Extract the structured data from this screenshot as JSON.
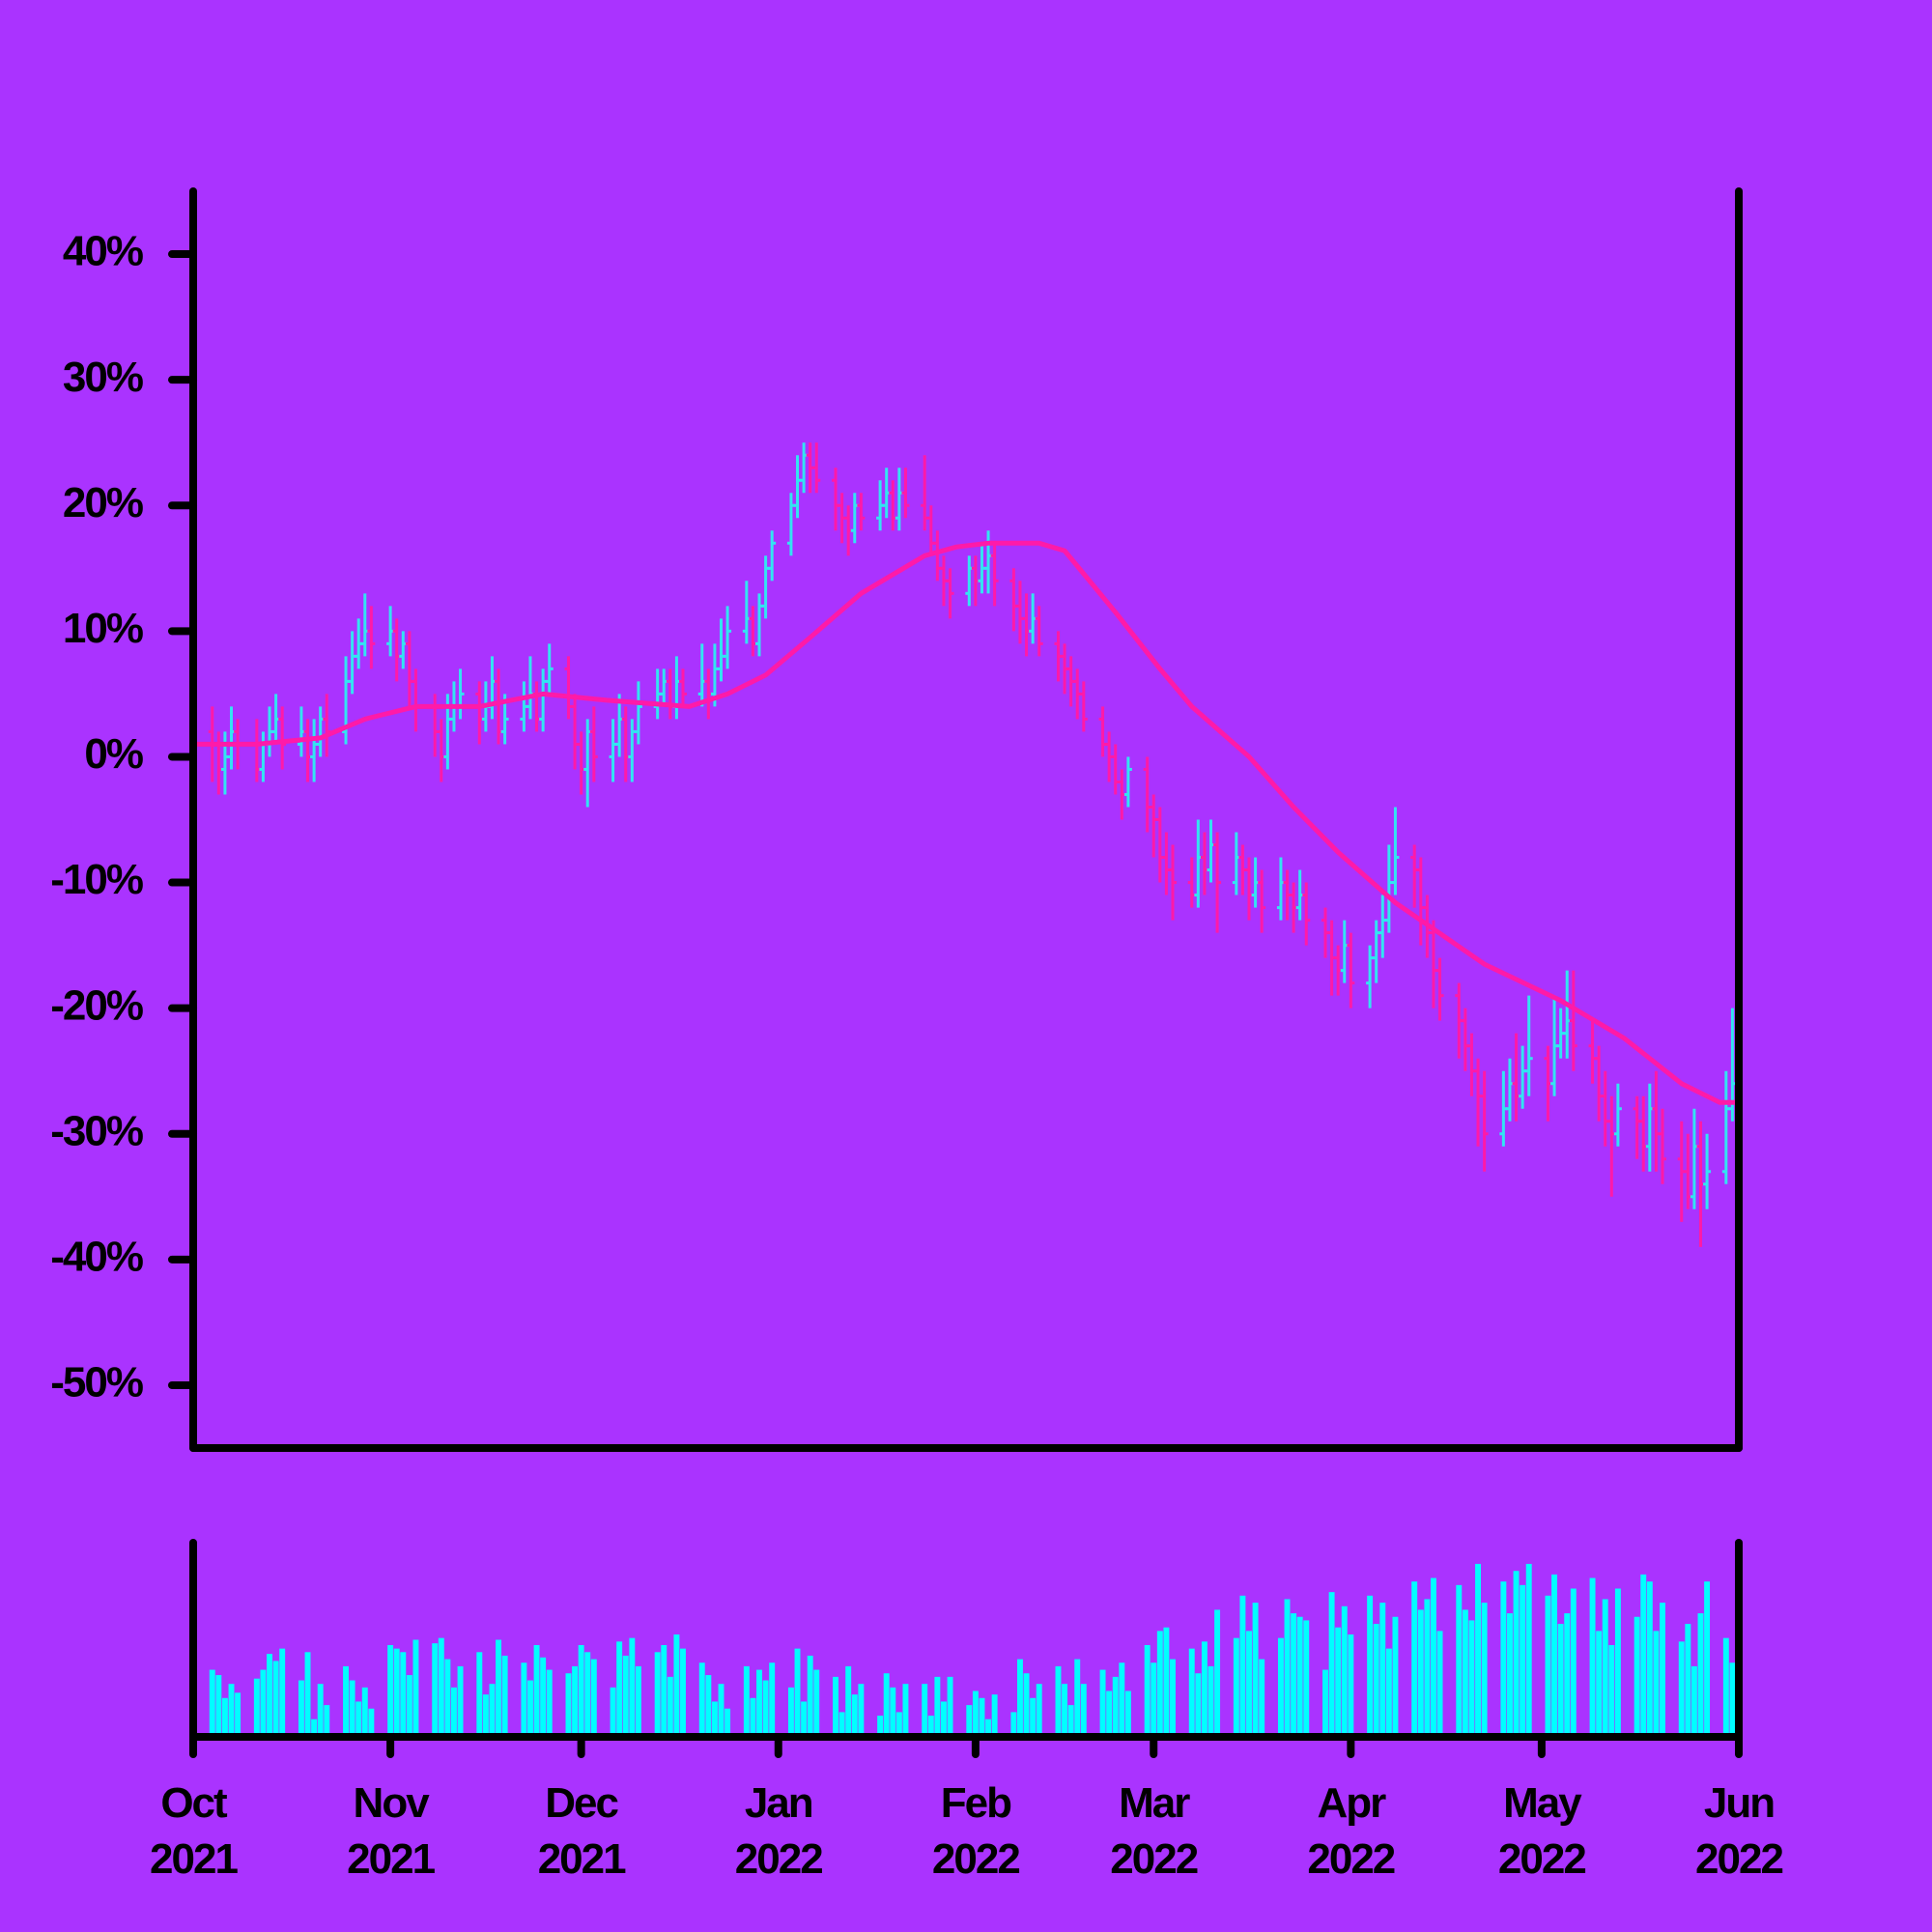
{
  "chart_data": {
    "type": "ohlc",
    "background": "#aa33ff",
    "up_color": "#33e4f2",
    "down_color": "#ff1aa8",
    "volume_color": "#00ffff",
    "xlim": [
      0,
      243
    ],
    "xticks": [
      {
        "value": 0,
        "label": "Oct\n2021"
      },
      {
        "value": 31,
        "label": "Nov\n2021"
      },
      {
        "value": 61,
        "label": "Dec\n2021"
      },
      {
        "value": 92,
        "label": "Jan\n2022"
      },
      {
        "value": 123,
        "label": "Feb\n2022"
      },
      {
        "value": 151,
        "label": "Mar\n2022"
      },
      {
        "value": 182,
        "label": "Apr\n2022"
      },
      {
        "value": 212,
        "label": "May\n2022"
      },
      {
        "value": 243,
        "label": "Jun\n2022"
      }
    ],
    "ylim": [
      -55,
      45
    ],
    "yticks": [
      {
        "value": 40,
        "label": "40%"
      },
      {
        "value": 30,
        "label": "30%"
      },
      {
        "value": 20,
        "label": "20%"
      },
      {
        "value": 10,
        "label": "10%"
      },
      {
        "value": 0,
        "label": "0%"
      },
      {
        "value": -10,
        "label": "-10%"
      },
      {
        "value": -20,
        "label": "-20%"
      },
      {
        "value": -30,
        "label": "-30%"
      },
      {
        "value": -40,
        "label": "-40%"
      },
      {
        "value": -50,
        "label": "-50%"
      }
    ],
    "volume_ylim": [
      0,
      110
    ],
    "x": [
      0,
      3,
      4,
      5,
      6,
      7,
      10,
      11,
      12,
      13,
      14,
      17,
      18,
      19,
      20,
      21,
      24,
      25,
      26,
      27,
      28,
      31,
      32,
      33,
      34,
      35,
      38,
      39,
      40,
      41,
      42,
      45,
      46,
      47,
      48,
      49,
      52,
      53,
      54,
      55,
      56,
      59,
      60,
      61,
      62,
      63,
      66,
      67,
      68,
      69,
      70,
      73,
      74,
      75,
      76,
      77,
      80,
      81,
      82,
      83,
      84,
      87,
      88,
      89,
      90,
      91,
      94,
      95,
      96,
      97,
      98,
      101,
      102,
      103,
      104,
      105,
      108,
      109,
      110,
      111,
      112,
      115,
      116,
      117,
      118,
      119,
      122,
      123,
      124,
      125,
      126,
      129,
      130,
      131,
      132,
      133,
      136,
      137,
      138,
      139,
      140,
      143,
      144,
      145,
      146,
      147,
      150,
      151,
      152,
      153,
      154,
      157,
      158,
      159,
      160,
      161,
      164,
      165,
      166,
      167,
      168,
      171,
      172,
      173,
      174,
      175,
      178,
      179,
      180,
      181,
      182,
      185,
      186,
      187,
      188,
      189,
      192,
      193,
      194,
      195,
      196,
      199,
      200,
      201,
      202,
      203,
      206,
      207,
      208,
      209,
      210,
      213,
      214,
      215,
      216,
      217,
      220,
      221,
      222,
      223,
      224,
      227,
      228,
      229,
      230,
      231,
      234,
      235,
      236,
      237,
      238,
      241,
      242
    ],
    "open": [
      0,
      2,
      1,
      -1,
      0,
      2,
      1,
      -1,
      1,
      2,
      3,
      1,
      2,
      0,
      1,
      3,
      2,
      6,
      8,
      9,
      10,
      9,
      10,
      8,
      9,
      6,
      4,
      2,
      0,
      3,
      4,
      5,
      3,
      4,
      6,
      2,
      3,
      4,
      5,
      3,
      6,
      7,
      4,
      1,
      -1,
      2,
      0,
      1,
      3,
      0,
      2,
      4,
      5,
      6,
      4,
      6,
      5,
      6,
      5,
      7,
      8,
      10,
      11,
      9,
      12,
      15,
      17,
      20,
      22,
      24,
      23,
      22,
      20,
      19,
      18,
      20,
      19,
      20,
      21,
      19,
      21,
      20,
      19,
      17,
      15,
      14,
      13,
      15,
      14,
      15,
      16,
      14,
      12,
      11,
      10,
      11,
      9,
      8,
      7,
      6,
      5,
      3,
      1,
      0,
      -2,
      -3,
      -1,
      -4,
      -5,
      -8,
      -9,
      -10,
      -11,
      -8,
      -9,
      -7,
      -10,
      -8,
      -9,
      -11,
      -10,
      -12,
      -10,
      -11,
      -12,
      -11,
      -13,
      -14,
      -16,
      -17,
      -15,
      -18,
      -16,
      -14,
      -13,
      -10,
      -8,
      -9,
      -12,
      -14,
      -17,
      -19,
      -21,
      -23,
      -25,
      -27,
      -30,
      -28,
      -26,
      -27,
      -25,
      -24,
      -26,
      -23,
      -22,
      -21,
      -23,
      -24,
      -27,
      -29,
      -30,
      -28,
      -29,
      -31,
      -28,
      -30,
      -32,
      -33,
      -35,
      -31,
      -34,
      -33,
      -28
    ],
    "high": [
      5,
      4,
      2,
      2,
      4,
      3,
      3,
      2,
      4,
      5,
      4,
      4,
      3,
      3,
      4,
      5,
      8,
      10,
      11,
      13,
      12,
      12,
      11,
      10,
      10,
      7,
      5,
      3,
      5,
      6,
      7,
      6,
      6,
      8,
      7,
      5,
      6,
      8,
      6,
      7,
      9,
      8,
      5,
      2,
      3,
      4,
      3,
      5,
      4,
      3,
      6,
      7,
      7,
      7,
      8,
      7,
      9,
      7,
      9,
      11,
      12,
      14,
      12,
      13,
      16,
      18,
      21,
      24,
      25,
      25,
      25,
      23,
      21,
      20,
      21,
      21,
      22,
      23,
      22,
      23,
      23,
      24,
      20,
      18,
      16,
      15,
      16,
      16,
      17,
      18,
      17,
      15,
      14,
      13,
      13,
      12,
      10,
      9,
      8,
      7,
      6,
      4,
      2,
      1,
      -1,
      0,
      0,
      -3,
      -4,
      -6,
      -7,
      -8,
      -5,
      -6,
      -5,
      -6,
      -6,
      -7,
      -8,
      -8,
      -9,
      -8,
      -9,
      -10,
      -9,
      -10,
      -12,
      -13,
      -15,
      -13,
      -14,
      -15,
      -13,
      -11,
      -7,
      -4,
      -7,
      -8,
      -11,
      -13,
      -16,
      -18,
      -20,
      -22,
      -24,
      -25,
      -25,
      -24,
      -22,
      -23,
      -19,
      -23,
      -19,
      -20,
      -17,
      -17,
      -21,
      -23,
      -25,
      -27,
      -26,
      -27,
      -27,
      -26,
      -25,
      -28,
      -29,
      -30,
      -28,
      -29,
      -30,
      -25,
      -20
    ],
    "low": [
      -3,
      -2,
      -3,
      -3,
      -1,
      -1,
      -2,
      -2,
      0,
      1,
      -1,
      0,
      -2,
      -2,
      0,
      0,
      1,
      5,
      7,
      8,
      7,
      8,
      6,
      7,
      4,
      2,
      0,
      -2,
      -1,
      2,
      3,
      1,
      2,
      3,
      1,
      1,
      2,
      3,
      2,
      2,
      5,
      3,
      -1,
      -3,
      -4,
      -2,
      -2,
      0,
      -2,
      -2,
      1,
      3,
      4,
      3,
      3,
      4,
      4,
      3,
      4,
      6,
      7,
      9,
      8,
      8,
      11,
      14,
      16,
      19,
      21,
      21,
      21,
      18,
      17,
      16,
      17,
      18,
      18,
      19,
      18,
      18,
      19,
      18,
      16,
      14,
      12,
      11,
      12,
      12,
      13,
      13,
      12,
      10,
      9,
      8,
      9,
      8,
      6,
      5,
      4,
      3,
      2,
      0,
      -2,
      -3,
      -5,
      -4,
      -6,
      -8,
      -10,
      -11,
      -13,
      -12,
      -12,
      -11,
      -10,
      -14,
      -11,
      -11,
      -13,
      -12,
      -14,
      -13,
      -13,
      -14,
      -13,
      -15,
      -16,
      -19,
      -19,
      -18,
      -20,
      -20,
      -18,
      -16,
      -14,
      -11,
      -12,
      -15,
      -16,
      -20,
      -21,
      -24,
      -25,
      -27,
      -31,
      -33,
      -31,
      -29,
      -29,
      -28,
      -27,
      -29,
      -27,
      -24,
      -24,
      -25,
      -26,
      -29,
      -31,
      -35,
      -31,
      -32,
      -33,
      -33,
      -33,
      -34,
      -37,
      -36,
      -36,
      -39,
      -36,
      -34,
      -29
    ],
    "close": [
      2,
      1,
      -1,
      0,
      2,
      1,
      -1,
      1,
      2,
      3,
      1,
      2,
      0,
      1,
      3,
      2,
      6,
      8,
      9,
      10,
      9,
      10,
      8,
      9,
      6,
      4,
      2,
      0,
      3,
      4,
      5,
      3,
      4,
      6,
      2,
      3,
      4,
      5,
      3,
      6,
      7,
      4,
      1,
      -1,
      2,
      0,
      1,
      3,
      0,
      2,
      4,
      5,
      6,
      4,
      6,
      5,
      6,
      5,
      7,
      8,
      10,
      11,
      9,
      12,
      15,
      17,
      20,
      22,
      24,
      23,
      22,
      20,
      19,
      18,
      20,
      19,
      20,
      21,
      19,
      21,
      20,
      19,
      17,
      15,
      14,
      13,
      15,
      14,
      15,
      16,
      14,
      12,
      11,
      10,
      11,
      9,
      8,
      7,
      6,
      5,
      3,
      1,
      0,
      -2,
      -3,
      -1,
      -4,
      -5,
      -8,
      -9,
      -10,
      -11,
      -8,
      -9,
      -7,
      -10,
      -8,
      -9,
      -11,
      -10,
      -12,
      -10,
      -11,
      -12,
      -11,
      -13,
      -14,
      -16,
      -17,
      -15,
      -18,
      -16,
      -14,
      -13,
      -10,
      -8,
      -9,
      -12,
      -14,
      -17,
      -19,
      -21,
      -23,
      -25,
      -27,
      -30,
      -28,
      -26,
      -27,
      -25,
      -24,
      -26,
      -23,
      -22,
      -21,
      -23,
      -24,
      -27,
      -29,
      -30,
      -28,
      -29,
      -31,
      -28,
      -30,
      -32,
      -33,
      -35,
      -31,
      -34,
      -33,
      -28,
      -26
    ],
    "volume": [
      45,
      38,
      35,
      22,
      30,
      25,
      33,
      38,
      47,
      43,
      50,
      32,
      48,
      10,
      30,
      18,
      40,
      32,
      20,
      28,
      16,
      52,
      50,
      48,
      35,
      55,
      53,
      56,
      44,
      28,
      40,
      48,
      24,
      30,
      55,
      46,
      42,
      32,
      52,
      45,
      38,
      36,
      40,
      52,
      48,
      44,
      28,
      54,
      46,
      56,
      40,
      48,
      52,
      34,
      58,
      50,
      42,
      35,
      20,
      30,
      16,
      40,
      22,
      38,
      32,
      42,
      28,
      50,
      20,
      46,
      38,
      34,
      14,
      40,
      24,
      30,
      12,
      36,
      28,
      14,
      30,
      30,
      12,
      34,
      20,
      34,
      18,
      26,
      22,
      10,
      24,
      14,
      44,
      36,
      22,
      30,
      40,
      30,
      18,
      44,
      30,
      38,
      26,
      34,
      42,
      26,
      52,
      42,
      60,
      62,
      44,
      50,
      36,
      54,
      40,
      72,
      56,
      80,
      60,
      76,
      44,
      56,
      78,
      70,
      68,
      66,
      38,
      82,
      62,
      74,
      58,
      80,
      64,
      76,
      50,
      68,
      88,
      72,
      78,
      90,
      60,
      86,
      72,
      66,
      98,
      76,
      88,
      70,
      94,
      86,
      98,
      80,
      92,
      64,
      70,
      84,
      90,
      60,
      78,
      52,
      84,
      68,
      92,
      88,
      60,
      76,
      54,
      64,
      40,
      70,
      88,
      56,
      42
    ],
    "moving_average": {
      "color": "#ff1aa8",
      "x": [
        0,
        10,
        20,
        27,
        35,
        45,
        55,
        65,
        78,
        84,
        90,
        97,
        105,
        115,
        120,
        125,
        133,
        137,
        145,
        152,
        157,
        166,
        173,
        180,
        189,
        203,
        215,
        225,
        234,
        240,
        243
      ],
      "values": [
        1,
        1,
        1.5,
        3,
        4,
        4,
        5,
        4.5,
        4,
        5,
        6.5,
        9.5,
        13,
        16,
        16.7,
        17,
        17,
        16.4,
        11.5,
        7,
        4,
        0,
        -4,
        -7.6,
        -11.6,
        -16.5,
        -19.4,
        -22.4,
        -26,
        -27.5,
        -27.5
      ]
    }
  }
}
